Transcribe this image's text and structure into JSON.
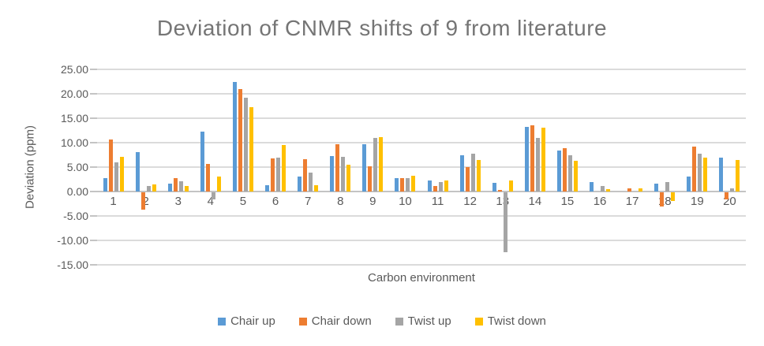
{
  "chart_data": {
    "type": "bar",
    "title": "Deviation of CNMR shifts of 9 from literature",
    "xlabel": "Carbon environment",
    "ylabel": "Deviation (ppm)",
    "ylim": [
      -15,
      25
    ],
    "grid": true,
    "legend_position": "bottom",
    "y_ticks": [
      {
        "value": 25,
        "label": "25.00"
      },
      {
        "value": 20,
        "label": "20.00"
      },
      {
        "value": 15,
        "label": "15.00"
      },
      {
        "value": 10,
        "label": "10.00"
      },
      {
        "value": 5,
        "label": "5.00"
      },
      {
        "value": 0,
        "label": "0.00"
      },
      {
        "value": -5,
        "label": "-5.00"
      },
      {
        "value": -10,
        "label": "-10.00"
      },
      {
        "value": -15,
        "label": "-15.00"
      }
    ],
    "categories": [
      "1",
      "2",
      "3",
      "4",
      "5",
      "6",
      "7",
      "8",
      "9",
      "10",
      "11",
      "12",
      "13",
      "14",
      "15",
      "16",
      "17",
      "18",
      "19",
      "20"
    ],
    "series": [
      {
        "name": "Chair up",
        "color": "#5B9BD5",
        "values": [
          2.8,
          8.1,
          1.6,
          12.2,
          22.5,
          1.3,
          3.0,
          7.3,
          9.6,
          2.7,
          2.2,
          7.4,
          1.8,
          13.3,
          8.4,
          2.0,
          0,
          1.6,
          3.1,
          7.0
        ]
      },
      {
        "name": "Chair down",
        "color": "#ED7D31",
        "values": [
          10.6,
          -3.5,
          2.8,
          5.7,
          20.9,
          6.7,
          6.6,
          9.7,
          5.2,
          2.8,
          1.2,
          5.0,
          0.3,
          13.6,
          8.8,
          0,
          0.6,
          -2.9,
          9.2,
          -1.5
        ]
      },
      {
        "name": "Twist up",
        "color": "#A5A5A5",
        "values": [
          5.9,
          1.1,
          2.1,
          -1.5,
          19.2,
          7.0,
          3.8,
          7.1,
          11.0,
          2.7,
          2.0,
          7.7,
          -12.3,
          11.0,
          7.5,
          1.1,
          0,
          2.0,
          7.7,
          0.6
        ]
      },
      {
        "name": "Twist down",
        "color": "#FFC000",
        "values": [
          7.1,
          1.4,
          1.2,
          3.1,
          17.3,
          9.5,
          1.3,
          5.5,
          11.1,
          3.2,
          2.2,
          6.5,
          2.2,
          13.1,
          6.3,
          0.5,
          0.7,
          -1.7,
          6.9,
          6.5
        ]
      }
    ]
  }
}
